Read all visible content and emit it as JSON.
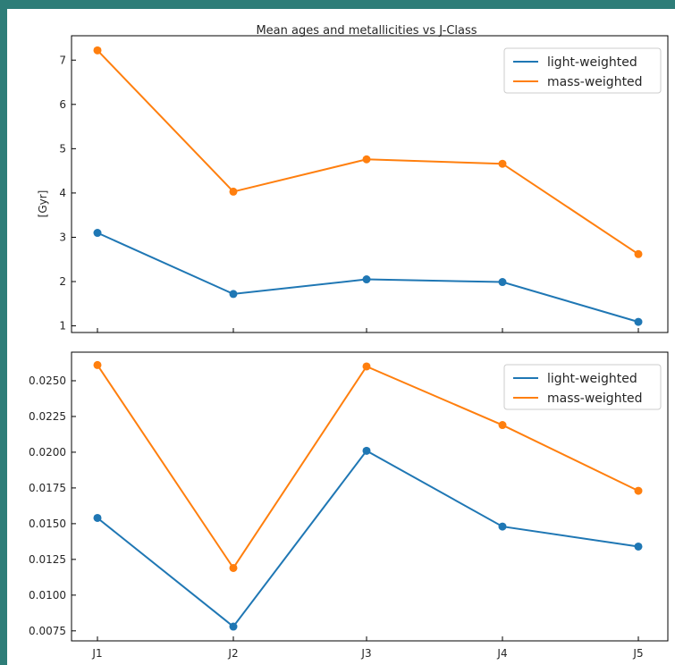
{
  "chart_data": [
    {
      "type": "line",
      "title": "Mean ages and metallicities vs J-Class",
      "ylabel": "[Gyr]",
      "categories": [
        "J1",
        "J2",
        "J3",
        "J4",
        "J5"
      ],
      "ylim": [
        0.85,
        7.55
      ],
      "yticks": [
        1,
        2,
        3,
        4,
        5,
        6,
        7
      ],
      "ytick_labels": [
        "1",
        "2",
        "3",
        "4",
        "5",
        "6",
        "7"
      ],
      "legend": "top-right",
      "series": [
        {
          "name": "light-weighted",
          "color": "#1f77b4",
          "values": [
            3.1,
            1.72,
            2.05,
            1.99,
            1.09
          ]
        },
        {
          "name": "mass-weighted",
          "color": "#ff7f0e",
          "values": [
            7.22,
            4.03,
            4.76,
            4.66,
            2.62
          ]
        }
      ]
    },
    {
      "type": "line",
      "title": "",
      "ylabel": "",
      "categories": [
        "J1",
        "J2",
        "J3",
        "J4",
        "J5"
      ],
      "ylim": [
        0.0068,
        0.027
      ],
      "yticks": [
        0.0075,
        0.01,
        0.0125,
        0.015,
        0.0175,
        0.02,
        0.0225,
        0.025
      ],
      "ytick_labels": [
        "0.0075",
        "0.0100",
        "0.0125",
        "0.0150",
        "0.0175",
        "0.0200",
        "0.0225",
        "0.0250"
      ],
      "legend": "top-right",
      "series": [
        {
          "name": "light-weighted",
          "color": "#1f77b4",
          "values": [
            0.0154,
            0.0078,
            0.0201,
            0.0148,
            0.0134
          ]
        },
        {
          "name": "mass-weighted",
          "color": "#ff7f0e",
          "values": [
            0.0261,
            0.0119,
            0.026,
            0.0219,
            0.0173
          ]
        }
      ]
    }
  ]
}
